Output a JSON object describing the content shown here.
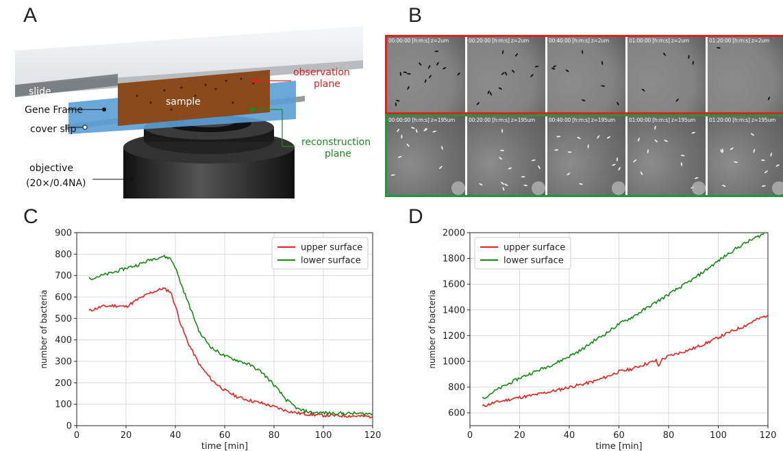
{
  "panels": {
    "A": "A",
    "B": "B",
    "C": "C",
    "D": "D"
  },
  "diagram": {
    "slide": "slide",
    "sample": "sample",
    "gene_frame": "Gene Frame",
    "cover_slip": "cover slip",
    "objective_line1": "objective",
    "objective_line2": "(20×/0.4NA)",
    "observation_line1": "observation",
    "observation_line2": "plane",
    "reconstruction_line1": "reconstruction",
    "reconstruction_line2": "plane",
    "colors": {
      "observation": "#e0201b",
      "reconstruction": "#1a8a1a"
    }
  },
  "micrographs": {
    "top_labels": [
      "00:00:00 [h:m:s] z=2um",
      "00:20:00 [h:m:s] z=2um",
      "00:40:00 [h:m:s] z=2um",
      "01:00:00 [h:m:s] z=2um",
      "01:20:00 [h:m:s] z=2um"
    ],
    "bottom_labels": [
      "00:00:00 [h:m:s] z=195um",
      "00:20:00 [h:m:s] z=195um",
      "00:40:00 [h:m:s] z=195um",
      "01:00:00 [h:m:s] z=195um",
      "01:20:00 [h:m:s] z=195um"
    ],
    "top_border_color": "#e0201b",
    "bottom_border_color": "#1a9a3a"
  },
  "chart_data": [
    {
      "type": "line",
      "xlabel": "time [min]",
      "ylabel": "number of bacteria",
      "xlim": [
        0,
        120
      ],
      "ylim": [
        0,
        900
      ],
      "xticks": [
        "0",
        "20",
        "40",
        "60",
        "80",
        "100",
        "120"
      ],
      "yticks": [
        "0",
        "100",
        "200",
        "300",
        "400",
        "500",
        "600",
        "700",
        "800",
        "900"
      ],
      "grid": true,
      "legend": "top-right",
      "series": [
        {
          "name": "upper surface",
          "color": "#e8201b",
          "x": [
            5,
            10,
            15,
            20,
            25,
            30,
            35,
            38,
            40,
            42,
            45,
            50,
            55,
            60,
            65,
            70,
            75,
            80,
            85,
            90,
            95,
            100,
            105,
            110,
            115,
            120
          ],
          "y": [
            535,
            555,
            560,
            555,
            590,
            620,
            640,
            625,
            560,
            480,
            390,
            280,
            210,
            165,
            135,
            118,
            105,
            88,
            70,
            58,
            52,
            48,
            47,
            46,
            44,
            42
          ]
        },
        {
          "name": "lower surface",
          "color": "#138a13",
          "x": [
            5,
            10,
            15,
            20,
            25,
            30,
            35,
            38,
            40,
            42,
            45,
            50,
            55,
            60,
            65,
            70,
            75,
            80,
            85,
            90,
            95,
            100,
            105,
            110,
            115,
            120
          ],
          "y": [
            685,
            700,
            715,
            735,
            750,
            775,
            790,
            780,
            740,
            670,
            580,
            430,
            360,
            325,
            305,
            285,
            250,
            190,
            120,
            75,
            62,
            60,
            58,
            57,
            56,
            55
          ]
        }
      ]
    },
    {
      "type": "line",
      "xlabel": "time [min]",
      "ylabel": "number of bacteria",
      "xlim": [
        0,
        120
      ],
      "ylim": [
        500,
        2000
      ],
      "xticks": [
        "0",
        "20",
        "40",
        "60",
        "80",
        "100",
        "120"
      ],
      "yticks": [
        "600",
        "800",
        "1000",
        "1200",
        "1400",
        "1600",
        "1800",
        "2000"
      ],
      "grid": true,
      "legend": "top-left",
      "series": [
        {
          "name": "upper surface",
          "color": "#e8201b",
          "x": [
            5,
            10,
            15,
            20,
            25,
            30,
            35,
            40,
            45,
            50,
            55,
            60,
            65,
            70,
            75,
            76,
            77,
            80,
            85,
            90,
            95,
            100,
            105,
            110,
            115,
            120
          ],
          "y": [
            650,
            680,
            700,
            720,
            735,
            755,
            775,
            800,
            820,
            845,
            880,
            920,
            940,
            975,
            1005,
            960,
            1010,
            1040,
            1070,
            1100,
            1140,
            1185,
            1230,
            1270,
            1320,
            1360
          ]
        },
        {
          "name": "lower surface",
          "color": "#138a13",
          "x": [
            5,
            10,
            15,
            20,
            25,
            30,
            35,
            40,
            45,
            50,
            55,
            60,
            65,
            70,
            75,
            80,
            85,
            90,
            95,
            100,
            105,
            110,
            115,
            120
          ],
          "y": [
            710,
            770,
            820,
            870,
            910,
            950,
            990,
            1040,
            1090,
            1160,
            1220,
            1290,
            1340,
            1400,
            1460,
            1520,
            1580,
            1640,
            1710,
            1780,
            1850,
            1910,
            1960,
            2010
          ]
        }
      ]
    }
  ]
}
